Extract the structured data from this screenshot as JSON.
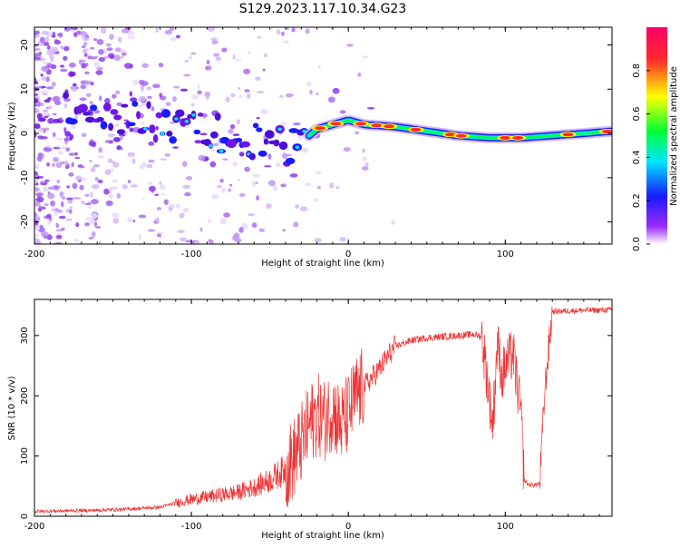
{
  "title": "S129.2023.117.10.34.G23",
  "chart_data": [
    {
      "type": "heatmap",
      "xlabel": "Height of straight line (km)",
      "ylabel": "Frequency (Hz)",
      "xlim": [
        -200,
        168
      ],
      "ylim": [
        -25,
        24
      ],
      "xticks": [
        "-200",
        "-100",
        "0",
        "100"
      ],
      "yticks": [
        "-20",
        "-10",
        "0",
        "10",
        "20"
      ],
      "xtick_values": [
        -200,
        -100,
        0,
        100
      ],
      "ytick_values": [
        -20,
        -10,
        0,
        10,
        20
      ],
      "grid": false,
      "colorbar": {
        "label": "Normalized spectral amplitude",
        "ticks": [
          "0.0",
          "0.2",
          "0.4",
          "0.6",
          "0.8"
        ],
        "tick_values": [
          0.0,
          0.2,
          0.4,
          0.6,
          0.8
        ],
        "range": [
          0,
          1
        ],
        "colors": [
          "#ffffff",
          "#9b2cff",
          "#1a1aff",
          "#00e5ff",
          "#00ff33",
          "#ffff00",
          "#ff2a2a",
          "#ff0066"
        ]
      },
      "ridge": {
        "x": [
          -175,
          -160,
          -145,
          -130,
          -115,
          -100,
          -85,
          -70,
          -55,
          -40,
          -30,
          -20,
          -10,
          0,
          10,
          30,
          50,
          70,
          90,
          110,
          130,
          150,
          168
        ],
        "y": [
          6,
          5,
          4,
          3,
          2,
          2,
          0,
          -1,
          -2,
          -3,
          -2,
          1,
          2,
          3,
          2,
          1.5,
          0.5,
          -0.5,
          -1,
          -1,
          -0.5,
          0,
          0.5
        ]
      }
    },
    {
      "type": "line",
      "xlabel": "Height of straight line (km)",
      "ylabel": "SNR (10 * v/v)",
      "xlim": [
        -200,
        168
      ],
      "ylim": [
        0,
        360
      ],
      "xticks": [
        "-200",
        "-100",
        "0",
        "100"
      ],
      "yticks": [
        "0",
        "100",
        "200",
        "300"
      ],
      "xtick_values": [
        -200,
        -100,
        0,
        100
      ],
      "ytick_values": [
        0,
        100,
        200,
        300
      ],
      "grid": false,
      "line_color": "#ee3333",
      "series": [
        {
          "x": [
            -200,
            -180,
            -160,
            -140,
            -120,
            -110,
            -100,
            -90,
            -80,
            -70,
            -60,
            -50,
            -40,
            -35,
            -30,
            -25,
            -20,
            -15,
            -10,
            -5,
            0,
            5,
            10,
            15,
            20,
            25,
            30,
            40,
            50,
            60,
            70,
            80,
            85,
            88,
            92,
            95,
            98,
            100,
            105,
            110,
            112,
            115,
            120,
            122,
            125,
            127,
            130,
            140,
            150,
            160,
            168
          ],
          "y": [
            8,
            9,
            10,
            12,
            15,
            22,
            28,
            32,
            36,
            40,
            48,
            60,
            78,
            95,
            120,
            150,
            170,
            160,
            180,
            150,
            170,
            200,
            215,
            230,
            245,
            265,
            282,
            292,
            296,
            298,
            300,
            302,
            298,
            240,
            150,
            290,
            230,
            250,
            270,
            170,
            60,
            52,
            52,
            55,
            200,
            260,
            340,
            341,
            342,
            342,
            343
          ]
        }
      ]
    }
  ]
}
